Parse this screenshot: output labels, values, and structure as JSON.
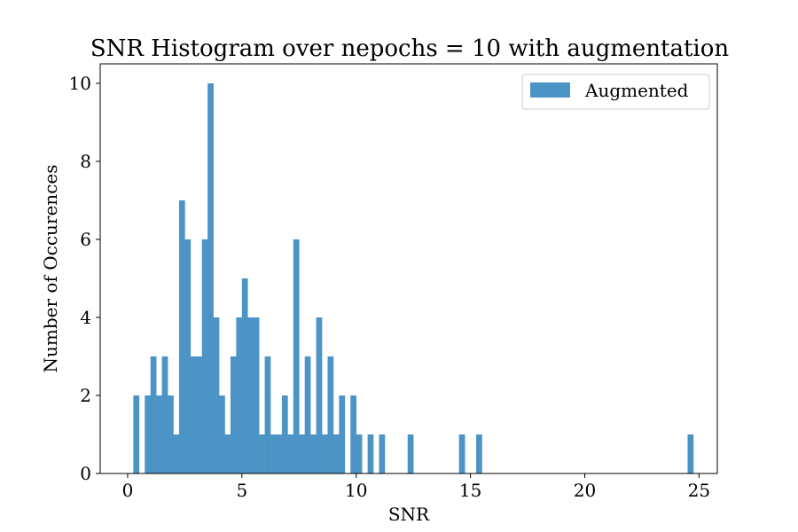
{
  "chart_data": {
    "type": "bar",
    "title": "SNR Histogram over nepochs = 10 with augmentation",
    "xlabel": "SNR",
    "ylabel": "Number of Occurences",
    "xlim": [
      -1.2,
      25.8
    ],
    "ylim": [
      0,
      10.5
    ],
    "xticks": [
      "0",
      "5",
      "10",
      "15",
      "20",
      "25"
    ],
    "yticks": [
      "0",
      "2",
      "4",
      "6",
      "8",
      "10"
    ],
    "grid": false,
    "legend_position": "top-right",
    "bin_width": 0.25,
    "series": [
      {
        "name": "Augmented",
        "color": "#4c94c6",
        "bins": [
          [
            0.25,
            2
          ],
          [
            0.75,
            2
          ],
          [
            1.0,
            3
          ],
          [
            1.25,
            2
          ],
          [
            1.5,
            3
          ],
          [
            1.75,
            2
          ],
          [
            2.0,
            1
          ],
          [
            2.25,
            7
          ],
          [
            2.5,
            6
          ],
          [
            2.75,
            3
          ],
          [
            3.0,
            3
          ],
          [
            3.25,
            6
          ],
          [
            3.5,
            10
          ],
          [
            3.75,
            4
          ],
          [
            4.0,
            2
          ],
          [
            4.25,
            1
          ],
          [
            4.5,
            3
          ],
          [
            4.75,
            4
          ],
          [
            5.0,
            5
          ],
          [
            5.25,
            4
          ],
          [
            5.5,
            4
          ],
          [
            5.75,
            1
          ],
          [
            6.0,
            3
          ],
          [
            6.25,
            1
          ],
          [
            6.5,
            1
          ],
          [
            6.75,
            2
          ],
          [
            7.0,
            1
          ],
          [
            7.25,
            6
          ],
          [
            7.5,
            1
          ],
          [
            7.75,
            3
          ],
          [
            8.0,
            1
          ],
          [
            8.25,
            4
          ],
          [
            8.5,
            1
          ],
          [
            8.75,
            3
          ],
          [
            9.0,
            1
          ],
          [
            9.25,
            2
          ],
          [
            9.75,
            2
          ],
          [
            10.0,
            1
          ],
          [
            10.5,
            1
          ],
          [
            11.0,
            1
          ],
          [
            12.25,
            1
          ],
          [
            14.5,
            1
          ],
          [
            15.25,
            1
          ],
          [
            24.5,
            1
          ]
        ]
      }
    ]
  }
}
